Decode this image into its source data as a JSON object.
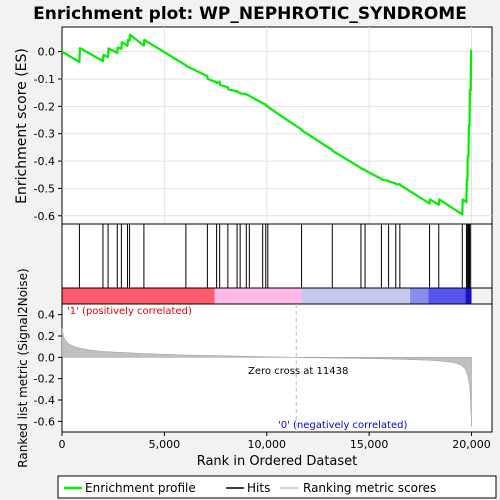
{
  "chart_data": {
    "type": "line",
    "title": "Enrichment plot: WP_NEPHROTIC_SYNDROME",
    "xlabel": "Rank in Ordered Dataset",
    "xlim": [
      0,
      21000
    ],
    "x_ticks": [
      0,
      5000,
      10000,
      15000,
      20000
    ],
    "x_tick_labels": [
      "0",
      "5,000",
      "10,000",
      "15,000",
      "20,000"
    ],
    "panels": {
      "enrichment": {
        "ylabel": "Enrichment score (ES)",
        "ylim": [
          -0.63,
          0.09
        ],
        "y_ticks": [
          0.0,
          -0.1,
          -0.2,
          -0.3,
          -0.4,
          -0.5,
          -0.6
        ],
        "y_tick_labels": [
          "0.0",
          "-0.1",
          "-0.2",
          "-0.3",
          "-0.4",
          "-0.5",
          "-0.6"
        ],
        "grid": true,
        "series": [
          {
            "name": "Enrichment profile",
            "color": "#00ff00",
            "x": [
              0,
              850,
              880,
              2000,
              2020,
              2250,
              2270,
              2700,
              2720,
              2900,
              2920,
              3200,
              3220,
              3300,
              3320,
              4000,
              4020,
              6050,
              6070,
              7100,
              7120,
              7550,
              7570,
              7700,
              7720,
              8100,
              8120,
              8550,
              8570,
              8700,
              8720,
              9000,
              9020,
              9150,
              9170,
              9800,
              9820,
              9950,
              9970,
              10050,
              10070,
              11700,
              11720,
              13200,
              13220,
              14600,
              14620,
              14800,
              14820,
              15600,
              15620,
              15950,
              15970,
              16300,
              16320,
              16500,
              16520,
              17950,
              17970,
              18400,
              18420,
              19550,
              19570,
              19750,
              19770,
              19800,
              19820,
              19850,
              19870,
              19900,
              19920,
              19960,
              19980,
              20000
            ],
            "y": [
              0.0,
              -0.038,
              0.013,
              -0.035,
              -0.012,
              -0.02,
              0.012,
              -0.005,
              0.015,
              0.01,
              0.035,
              0.021,
              0.043,
              0.04,
              0.062,
              0.022,
              0.043,
              -0.05,
              -0.052,
              -0.09,
              -0.1,
              -0.112,
              -0.115,
              -0.11,
              -0.122,
              -0.13,
              -0.138,
              -0.145,
              -0.148,
              -0.15,
              -0.153,
              -0.155,
              -0.158,
              -0.16,
              -0.163,
              -0.188,
              -0.19,
              -0.193,
              -0.198,
              -0.2,
              -0.203,
              -0.285,
              -0.288,
              -0.36,
              -0.363,
              -0.425,
              -0.428,
              -0.432,
              -0.435,
              -0.465,
              -0.468,
              -0.472,
              -0.475,
              -0.482,
              -0.485,
              -0.485,
              -0.488,
              -0.555,
              -0.54,
              -0.56,
              -0.54,
              -0.595,
              -0.54,
              -0.55,
              -0.47,
              -0.47,
              -0.38,
              -0.38,
              -0.27,
              -0.27,
              -0.14,
              -0.14,
              0.005,
              0.005
            ]
          }
        ]
      },
      "hits": {
        "name": "Hits",
        "color": "#000000",
        "x": [
          850,
          2000,
          2250,
          2700,
          2900,
          3200,
          3300,
          4000,
          6050,
          7100,
          7550,
          7700,
          8100,
          8550,
          8700,
          9000,
          9150,
          9800,
          9950,
          10050,
          11700,
          13200,
          14600,
          14800,
          15600,
          15950,
          16300,
          16500,
          17950,
          18400,
          19550,
          19750,
          19800,
          19850,
          19900,
          19960
        ]
      },
      "color_bar": {
        "segments": [
          {
            "from": 0,
            "to": 7450,
            "color": "#ff5a6e"
          },
          {
            "from": 7450,
            "to": 11700,
            "color": "#ffb9e8"
          },
          {
            "from": 11700,
            "to": 17000,
            "color": "#c5c8ee"
          },
          {
            "from": 17000,
            "to": 17900,
            "color": "#8a8cf0"
          },
          {
            "from": 17900,
            "to": 19700,
            "color": "#5555ee"
          },
          {
            "from": 19700,
            "to": 20000,
            "color": "#1a12c0"
          }
        ]
      },
      "ranking": {
        "name": "Ranking metric scores",
        "ylabel": "Ranked list metric (Signal2Noise)",
        "ylim": [
          -0.7,
          0.5
        ],
        "y_ticks": [
          0.4,
          0.2,
          0.0,
          -0.2,
          -0.4,
          -0.6
        ],
        "y_tick_labels": [
          "0.4",
          "0.2",
          "0.0",
          "-0.2",
          "-0.4",
          "-0.6"
        ],
        "color": "#b0b0b0",
        "x": [
          0,
          100,
          300,
          600,
          1000,
          1500,
          2000,
          3000,
          4000,
          5000,
          6000,
          7000,
          8000,
          9000,
          10000,
          11438,
          12000,
          13000,
          14000,
          15000,
          16000,
          17000,
          18000,
          18500,
          19000,
          19300,
          19500,
          19700,
          19800,
          19900,
          19950,
          20000
        ],
        "values": [
          0.27,
          0.18,
          0.13,
          0.1,
          0.08,
          0.065,
          0.055,
          0.045,
          0.035,
          0.028,
          0.022,
          0.018,
          0.014,
          0.01,
          0.006,
          0.0,
          -0.003,
          -0.006,
          -0.009,
          -0.012,
          -0.016,
          -0.021,
          -0.028,
          -0.035,
          -0.045,
          -0.058,
          -0.075,
          -0.11,
          -0.16,
          -0.25,
          -0.4,
          -0.65
        ],
        "annotations": {
          "positive": "'1' (positively correlated)",
          "negative": "'0' (negatively correlated)",
          "zero_cross_label": "Zero cross at 11438",
          "zero_cross": 11438
        }
      }
    },
    "legend": {
      "placement": "bottom",
      "entries": [
        "Enrichment profile",
        "Hits",
        "Ranking metric scores"
      ]
    }
  }
}
